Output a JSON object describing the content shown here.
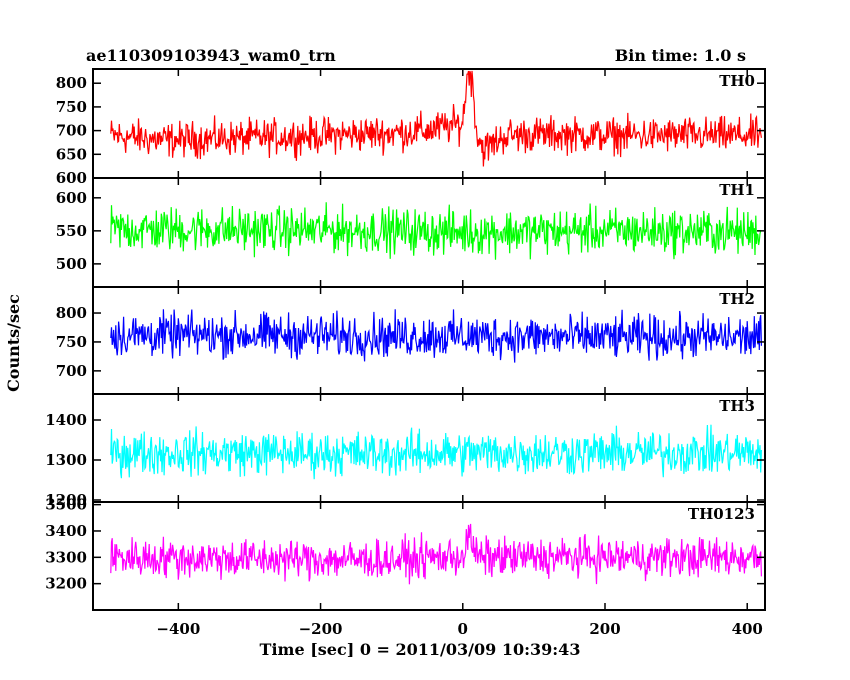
{
  "header": {
    "obs_id": "ae110309103943_wam0_trn",
    "bin_time": "Bin time: 1.0 s"
  },
  "axes": {
    "xlabel": "Time [sec] 0 = 2011/03/09 10:39:43",
    "ylabel": "Counts/sec"
  },
  "chart_data": {
    "type": "line",
    "title": "ae110309103943_wam0_trn",
    "subtitle": "Bin time: 1.0 s",
    "xlabel": "Time [sec] 0 = 2011/03/09 10:39:43",
    "ylabel": "Counts/sec",
    "xlim": [
      -520,
      425
    ],
    "x_range": [
      -495,
      420
    ],
    "bin_time_s": 1.0,
    "x_ticks": [
      -400,
      -200,
      0,
      200,
      400
    ],
    "x_tick_labels": [
      "−400",
      "−200",
      "0",
      "200",
      "400"
    ],
    "panels": [
      {
        "name": "TH0",
        "color": "#ff0000",
        "ylim": [
          600,
          830
        ],
        "yticks": [
          600,
          650,
          700,
          750,
          800
        ],
        "series": {
          "points": [
            [
              -495,
              690
            ],
            [
              -420,
              680
            ],
            [
              -300,
              685
            ],
            [
              -200,
              690
            ],
            [
              -100,
              695
            ],
            [
              -50,
              700
            ],
            [
              0,
              715
            ],
            [
              5,
              800
            ],
            [
              10,
              830
            ],
            [
              15,
              780
            ],
            [
              20,
              690
            ],
            [
              30,
              660
            ],
            [
              60,
              690
            ],
            [
              100,
              692
            ],
            [
              200,
              690
            ],
            [
              300,
              690
            ],
            [
              420,
              690
            ]
          ],
          "spread": 55
        }
      },
      {
        "name": "TH1",
        "color": "#00ff00",
        "ylim": [
          465,
          630
        ],
        "yticks": [
          500,
          550,
          600
        ],
        "series": {
          "points": [
            [
              -495,
              552
            ],
            [
              -300,
              552
            ],
            [
              -100,
              550
            ],
            [
              0,
              548
            ],
            [
              200,
              550
            ],
            [
              420,
              548
            ]
          ],
          "spread": 50
        }
      },
      {
        "name": "TH2",
        "color": "#0000ff",
        "ylim": [
          660,
          845
        ],
        "yticks": [
          700,
          750,
          800
        ],
        "series": {
          "points": [
            [
              -495,
              762
            ],
            [
              -300,
              762
            ],
            [
              -100,
              760
            ],
            [
              0,
              760
            ],
            [
              200,
              758
            ],
            [
              420,
              758
            ]
          ],
          "spread": 55
        }
      },
      {
        "name": "TH3",
        "color": "#00ffff",
        "ylim": [
          1195,
          1465
        ],
        "yticks": [
          1200,
          1300,
          1400
        ],
        "series": {
          "points": [
            [
              -495,
              1318
            ],
            [
              -300,
              1318
            ],
            [
              -100,
              1315
            ],
            [
              0,
              1318
            ],
            [
              200,
              1318
            ],
            [
              420,
              1318
            ]
          ],
          "spread": 80
        }
      },
      {
        "name": "TH0123",
        "color": "#ff00ff",
        "ylim": [
          3100,
          3510
        ],
        "yticks": [
          3200,
          3300,
          3400,
          3500
        ],
        "series": {
          "points": [
            [
              -495,
              3300
            ],
            [
              -300,
              3295
            ],
            [
              -100,
              3290
            ],
            [
              0,
              3305
            ],
            [
              10,
              3380
            ],
            [
              20,
              3300
            ],
            [
              200,
              3300
            ],
            [
              420,
              3300
            ]
          ],
          "spread": 110
        }
      }
    ],
    "grid": false,
    "legend": "panel labels top-right"
  }
}
